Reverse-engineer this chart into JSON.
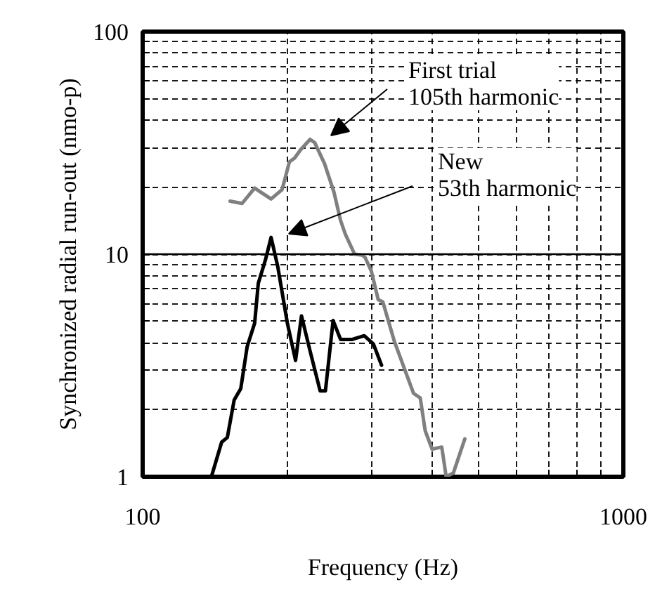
{
  "chart_data": {
    "type": "line",
    "xlabel": "Frequency (Hz)",
    "ylabel": "Synchronized radial run-out (nmo-p)",
    "log": "xy",
    "grid": true,
    "line_style": "solid",
    "xlim": [
      100,
      1000
    ],
    "ylim": [
      1,
      100
    ],
    "xticks": [
      100,
      {
        "value": 200,
        "label": null
      },
      {
        "value": 300,
        "label": null
      },
      {
        "value": 400,
        "label": null
      },
      {
        "value": 500,
        "label": null
      },
      {
        "value": 600,
        "label": null
      },
      {
        "value": 700,
        "label": null
      },
      {
        "value": 800,
        "label": null
      },
      {
        "value": 900,
        "label": null
      },
      1000
    ],
    "yticks": [
      1,
      {
        "value": 2,
        "label": null
      },
      {
        "value": 3,
        "label": null
      },
      {
        "value": 4,
        "label": null
      },
      {
        "value": 5,
        "label": null
      },
      {
        "value": 6,
        "label": null
      },
      {
        "value": 7,
        "label": null
      },
      {
        "value": 8,
        "label": null
      },
      {
        "value": 9,
        "label": null
      },
      10,
      {
        "value": 20,
        "label": null
      },
      {
        "value": 30,
        "label": null
      },
      {
        "value": 40,
        "label": null
      },
      {
        "value": 50,
        "label": null
      },
      {
        "value": 60,
        "label": null
      },
      {
        "value": 70,
        "label": null
      },
      {
        "value": 80,
        "label": null
      },
      {
        "value": 90,
        "label": null
      },
      100
    ],
    "ref_lines": [
      {
        "axis": "y",
        "value": 10,
        "label": null,
        "color": "#000000",
        "line_style": "solid"
      }
    ],
    "series": [
      {
        "color": "#808080",
        "x": [
          152,
          161,
          171,
          176,
          185,
          195,
          202,
          207,
          213,
          223,
          228,
          239,
          250,
          258,
          264,
          276,
          286,
          290,
          299,
          309,
          316,
          334,
          354,
          366,
          378,
          387,
          400,
          419,
          428,
          443,
          468
        ],
        "values": [
          17.3,
          16.9,
          19.8,
          19,
          17.7,
          19.5,
          26,
          27,
          29.4,
          32.8,
          31.7,
          25.5,
          19,
          14.2,
          12.3,
          10,
          9.9,
          9.7,
          8.4,
          6.25,
          6.1,
          4.05,
          2.88,
          2.37,
          2.26,
          1.61,
          1.33,
          1.36,
          1.0,
          1.04,
          1.48
        ]
      },
      {
        "color": "#000000",
        "x": [
          139,
          146,
          150,
          155,
          160,
          165,
          171,
          174,
          180,
          185,
          191,
          200,
          208,
          214,
          223,
          234,
          240,
          249,
          258,
          273,
          289,
          302,
          314
        ],
        "values": [
          1.0,
          1.43,
          1.5,
          2.21,
          2.49,
          3.85,
          4.9,
          7.4,
          9.4,
          11.9,
          8.8,
          4.9,
          3.33,
          5.28,
          3.67,
          2.43,
          2.43,
          5.03,
          4.14,
          4.14,
          4.3,
          3.95,
          3.17
        ]
      }
    ],
    "annotations": [
      "First trial\n105th harmonic",
      "New\n53th harmonic"
    ]
  }
}
